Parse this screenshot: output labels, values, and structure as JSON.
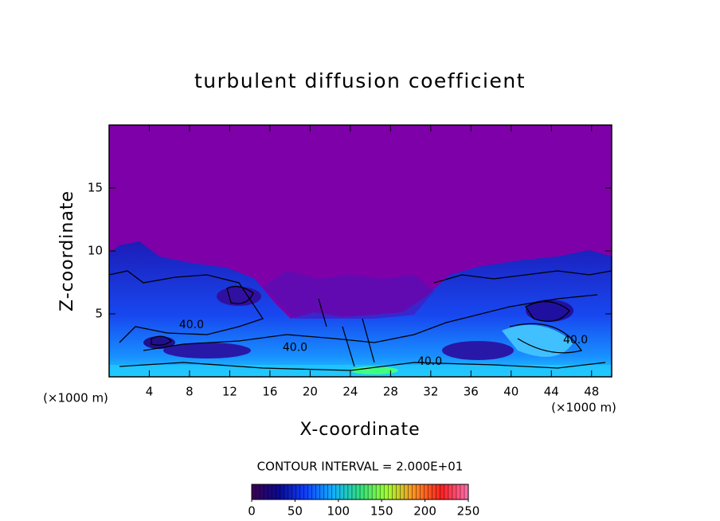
{
  "chart_data": {
    "type": "contour",
    "title": "turbulent diffusion coefficient",
    "xlabel": "X-coordinate",
    "ylabel": "Z-coordinate",
    "xunit": "(×1000 m)",
    "yunit": "(×1000 m)",
    "xlim": [
      0,
      50
    ],
    "xticks": [
      4,
      8,
      12,
      16,
      20,
      24,
      28,
      32,
      36,
      40,
      44,
      48
    ],
    "ylim": [
      0,
      20
    ],
    "yticks": [
      5,
      10,
      15
    ],
    "background_color": "#7e00a8",
    "contour_interval_label": "CONTOUR INTERVAL = 2.000E+01",
    "contour_labels": {
      "x": [
        8.2,
        18.5,
        31.9,
        46.4
      ],
      "z": [
        4.1,
        2.3,
        1.2,
        2.9
      ],
      "labels": [
        "40.0",
        "40.0",
        "40.0",
        "40.0"
      ]
    },
    "colorbar": {
      "lim": [
        0,
        250
      ],
      "ticks": [
        0,
        50,
        100,
        150,
        200,
        250
      ],
      "colors": [
        "#3a0050",
        "#0a0a90",
        "#1040ff",
        "#10b0ff",
        "#30e080",
        "#a0ff30",
        "#ff9020",
        "#ff2020",
        "#ff70b0"
      ]
    }
  }
}
